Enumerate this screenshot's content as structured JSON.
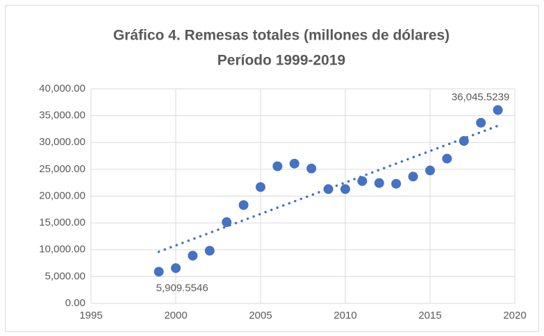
{
  "chart_data": {
    "type": "scatter",
    "title": "Gráfico 4. Remesas totales (millones de dólares)",
    "subtitle": "Período 1999-2019",
    "x": [
      1999,
      2000,
      2001,
      2002,
      2003,
      2004,
      2005,
      2006,
      2007,
      2008,
      2009,
      2010,
      2011,
      2012,
      2013,
      2014,
      2015,
      2016,
      2017,
      2018,
      2019
    ],
    "values": [
      5909.5546,
      6573,
      8895,
      9815,
      15139,
      18332,
      21688,
      25567,
      26059,
      25145,
      21306,
      21304,
      22803,
      22438,
      22303,
      23647,
      24785,
      26993,
      30291,
      33677,
      36045.5239
    ],
    "value_labels": [
      "5,909.5546",
      null,
      null,
      null,
      null,
      null,
      null,
      null,
      null,
      null,
      null,
      null,
      null,
      null,
      null,
      null,
      null,
      null,
      null,
      null,
      "36,045.5239"
    ],
    "color": "#4472c4",
    "trendline": "linear",
    "xlim": [
      1995,
      2020
    ],
    "xticks": [
      1995,
      2000,
      2005,
      2010,
      2015,
      2020
    ],
    "ylim": [
      0,
      40000
    ],
    "yticks": [
      {
        "value": 0,
        "label": "0.00"
      },
      {
        "value": 5000,
        "label": "5,000.00"
      },
      {
        "value": 10000,
        "label": "10,000.00"
      },
      {
        "value": 15000,
        "label": "15,000.00"
      },
      {
        "value": 20000,
        "label": "20,000.00"
      },
      {
        "value": 25000,
        "label": "25,000.00"
      },
      {
        "value": 30000,
        "label": "30,000.00"
      },
      {
        "value": 35000,
        "label": "35,000.00"
      },
      {
        "value": 40000,
        "label": "40,000.00"
      }
    ],
    "grid": true
  }
}
